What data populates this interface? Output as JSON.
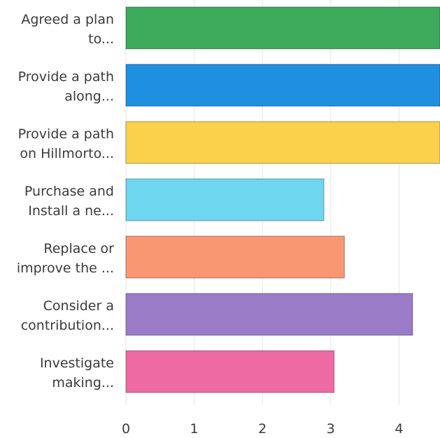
{
  "chart_data": {
    "type": "bar",
    "orientation": "horizontal",
    "categories": [
      [
        "Agreed a plan",
        "to..."
      ],
      [
        "Provide a path",
        "along..."
      ],
      [
        "Provide a path",
        "on Hillmorto..."
      ],
      [
        "Purchase and",
        "Install a ne..."
      ],
      [
        "Replace or",
        "improve the ..."
      ],
      [
        "Consider a",
        "contribution..."
      ],
      [
        "Investigate",
        "making..."
      ]
    ],
    "values": [
      4.6,
      4.6,
      4.6,
      2.9,
      3.2,
      4.2,
      3.05
    ],
    "colors": [
      "#3daa5c",
      "#1f8fe0",
      "#fbd14b",
      "#6ed6ef",
      "#fa9773",
      "#9a7bc8",
      "#ee6aa3"
    ],
    "xlim": [
      0,
      4.6
    ],
    "x_ticks": [
      "0",
      "1",
      "2",
      "3",
      "4"
    ],
    "title": "",
    "xlabel": "",
    "ylabel": "",
    "grid": true
  }
}
